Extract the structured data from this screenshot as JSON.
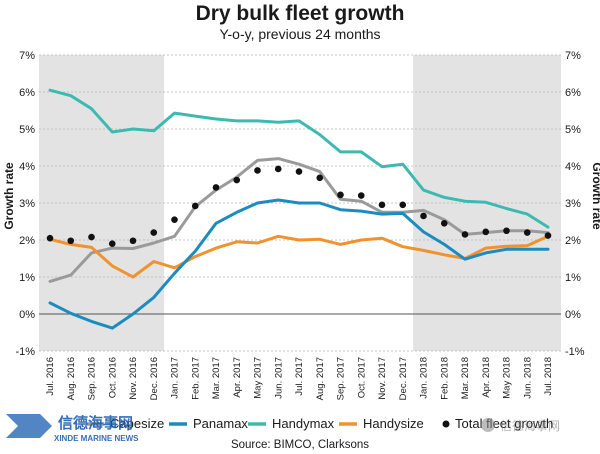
{
  "chart_data": {
    "type": "line",
    "title": "Dry bulk fleet growth",
    "subtitle": "Y-o-y, previous 24 months",
    "ylabel": "Growth rate",
    "ylabel_right": "Growth rate",
    "ylim": [
      -1,
      7
    ],
    "yticks": [
      "-1%",
      "0%",
      "1%",
      "2%",
      "3%",
      "4%",
      "5%",
      "6%",
      "7%"
    ],
    "grid": true,
    "legend_position": "bottom",
    "shaded_ranges": [
      [
        "Jul. 2016",
        "Dec. 2016"
      ],
      [
        "Jan. 2018",
        "Jul. 2018"
      ]
    ],
    "categories": [
      "Jul. 2016",
      "Aug. 2016",
      "Sep. 2016",
      "Oct. 2016",
      "Nov. 2016",
      "Dec. 2016",
      "Jan. 2017",
      "Feb. 2017",
      "Mar. 2017",
      "Apr. 2017",
      "May 2017",
      "Jun. 2017",
      "Jul. 2017",
      "Aug. 2017",
      "Sep. 2017",
      "Oct. 2017",
      "Nov. 2017",
      "Dec. 2017",
      "Jan. 2018",
      "Feb. 2018",
      "Mar. 2018",
      "Apr. 2018",
      "May 2018",
      "Jun. 2018",
      "Jul. 2018"
    ],
    "series": [
      {
        "name": "Capesize",
        "color": "#9a9a9a",
        "style": "line",
        "values": [
          0.88,
          1.05,
          1.65,
          1.78,
          1.77,
          1.92,
          2.1,
          2.9,
          3.35,
          3.7,
          4.15,
          4.2,
          4.05,
          3.85,
          3.1,
          3.05,
          2.75,
          2.75,
          2.8,
          2.55,
          2.15,
          2.2,
          2.25,
          2.25,
          2.2
        ]
      },
      {
        "name": "Panamax",
        "color": "#1a8cc0",
        "style": "line",
        "values": [
          0.3,
          0.02,
          -0.2,
          -0.38,
          0.0,
          0.45,
          1.1,
          1.7,
          2.45,
          2.75,
          3.0,
          3.08,
          3.0,
          3.0,
          2.82,
          2.78,
          2.7,
          2.72,
          2.22,
          1.88,
          1.48,
          1.65,
          1.75,
          1.75,
          1.75
        ]
      },
      {
        "name": "Handymax",
        "color": "#3dbab0",
        "style": "line",
        "values": [
          6.05,
          5.9,
          5.55,
          4.92,
          5.0,
          4.95,
          5.43,
          5.35,
          5.27,
          5.22,
          5.22,
          5.18,
          5.22,
          4.85,
          4.38,
          4.38,
          3.98,
          4.05,
          3.35,
          3.15,
          3.05,
          3.02,
          2.85,
          2.7,
          2.35
        ]
      },
      {
        "name": "Handysize",
        "color": "#f0922e",
        "style": "line",
        "values": [
          2.02,
          1.88,
          1.8,
          1.3,
          1.0,
          1.42,
          1.25,
          1.55,
          1.78,
          1.95,
          1.92,
          2.1,
          2.0,
          2.02,
          1.88,
          2.0,
          2.05,
          1.82,
          1.72,
          1.6,
          1.5,
          1.78,
          1.83,
          1.85,
          2.1
        ]
      },
      {
        "name": "Total fleet growth",
        "color": "#111111",
        "style": "dots",
        "values": [
          2.05,
          1.98,
          2.08,
          1.9,
          1.98,
          2.2,
          2.55,
          2.92,
          3.42,
          3.62,
          3.88,
          3.92,
          3.85,
          3.68,
          3.22,
          3.2,
          2.95,
          2.95,
          2.65,
          2.45,
          2.15,
          2.22,
          2.25,
          2.2,
          2.12
        ]
      }
    ],
    "source": "Source: BIMCO, Clarksons"
  },
  "watermarks": {
    "logo_text": "XINDE MARINE NEWS",
    "logo_chinese": "信德海事网",
    "wechat_text": "信德海事网"
  }
}
